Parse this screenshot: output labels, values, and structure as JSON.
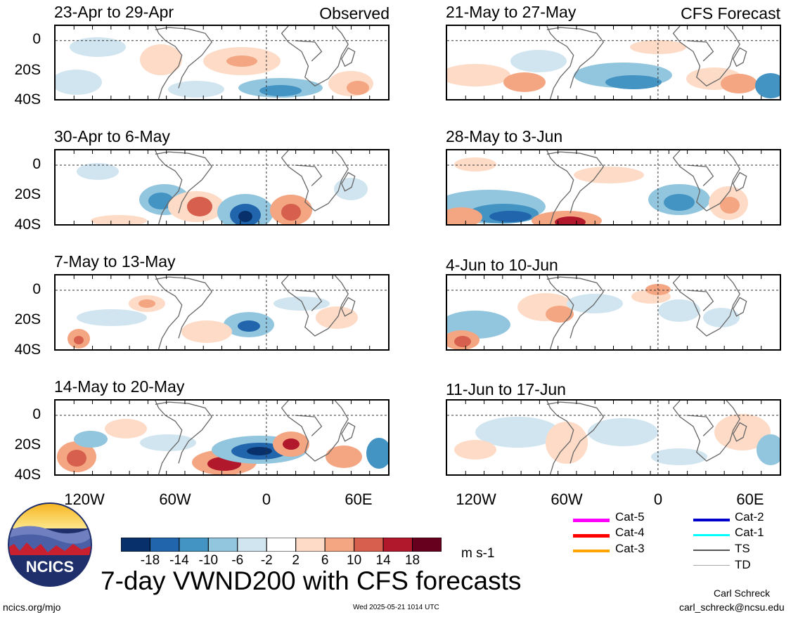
{
  "header": {
    "observed_label": "Observed",
    "forecast_label": "CFS Forecast"
  },
  "panels": {
    "observed": [
      {
        "title": "23-Apr to 29-Apr"
      },
      {
        "title": "30-Apr to 6-May"
      },
      {
        "title": "7-May to 13-May"
      },
      {
        "title": "14-May to 20-May"
      }
    ],
    "forecast": [
      {
        "title": "21-May to 27-May"
      },
      {
        "title": "28-May to 3-Jun"
      },
      {
        "title": "4-Jun to 10-Jun"
      },
      {
        "title": "11-Jun to 17-Jun"
      }
    ]
  },
  "axes": {
    "y_ticks": [
      "0",
      "20S",
      "40S"
    ],
    "x_ticks": [
      "120W",
      "60W",
      "0",
      "60E"
    ]
  },
  "colorbar": {
    "labels": [
      "-18",
      "-14",
      "-10",
      "-6",
      "-2",
      "2",
      "6",
      "10",
      "14",
      "18"
    ],
    "units": "m s-1",
    "colors": [
      "#08306b",
      "#2166ac",
      "#4393c3",
      "#92c5de",
      "#d1e5f0",
      "#ffffff",
      "#fddbc7",
      "#f4a582",
      "#d6604d",
      "#b2182b",
      "#67001f"
    ]
  },
  "legend": [
    {
      "label": "Cat-5",
      "color": "#ff00ff"
    },
    {
      "label": "Cat-2",
      "color": "#0000cd"
    },
    {
      "label": "Cat-4",
      "color": "#ff0000"
    },
    {
      "label": "Cat-1",
      "color": "#00ffff"
    },
    {
      "label": "Cat-3",
      "color": "#ffa500"
    },
    {
      "label": "TS",
      "color": "#555555"
    },
    {
      "label": "TD",
      "color": "#aaaaaa"
    }
  ],
  "logo": {
    "text": "NCICS"
  },
  "title": "7-day VWND200 with CFS forecasts",
  "footer": {
    "url": "ncics.org/mjo",
    "timestamp": "Wed 2025-05-21 1014 UTC",
    "author": "Carl Schreck",
    "email": "carl_schreck@ncsu.edu"
  }
}
